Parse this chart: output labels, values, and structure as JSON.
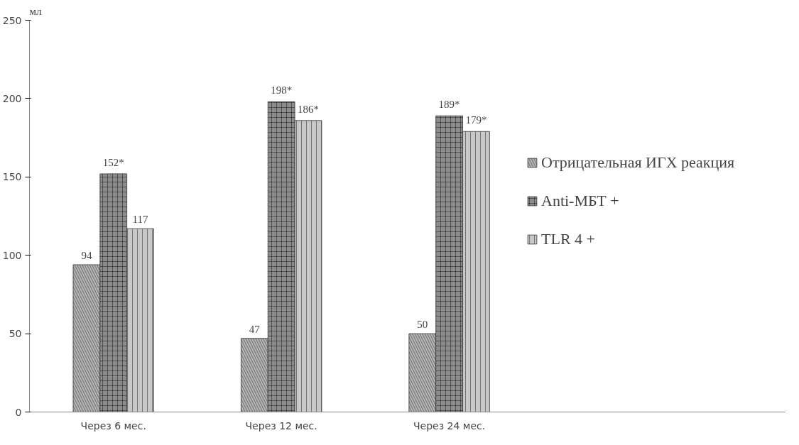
{
  "chart_data": {
    "type": "bar",
    "ylabel": "мл",
    "categories": [
      "Через 6 мес.",
      "Через 12 мес.",
      "Через 24 мес."
    ],
    "series": [
      {
        "name": "Отрицательная ИГХ реакция",
        "color": "#b4b4b4",
        "values": [
          94,
          47,
          50
        ],
        "value_labels": [
          "94",
          "47",
          "50"
        ]
      },
      {
        "name": "Anti-МБТ +",
        "color": "#8c8c8c",
        "values": [
          152,
          198,
          189
        ],
        "value_labels": [
          "152*",
          "198*",
          "189*"
        ]
      },
      {
        "name": "TLR 4 +",
        "color": "#c8c8c8",
        "values": [
          117,
          186,
          179
        ],
        "value_labels": [
          "117",
          "186*",
          "179*"
        ]
      }
    ],
    "ylim": [
      0,
      250
    ],
    "yticks": [
      0,
      50,
      100,
      150,
      200,
      250
    ],
    "grid": false,
    "legend": "right"
  }
}
